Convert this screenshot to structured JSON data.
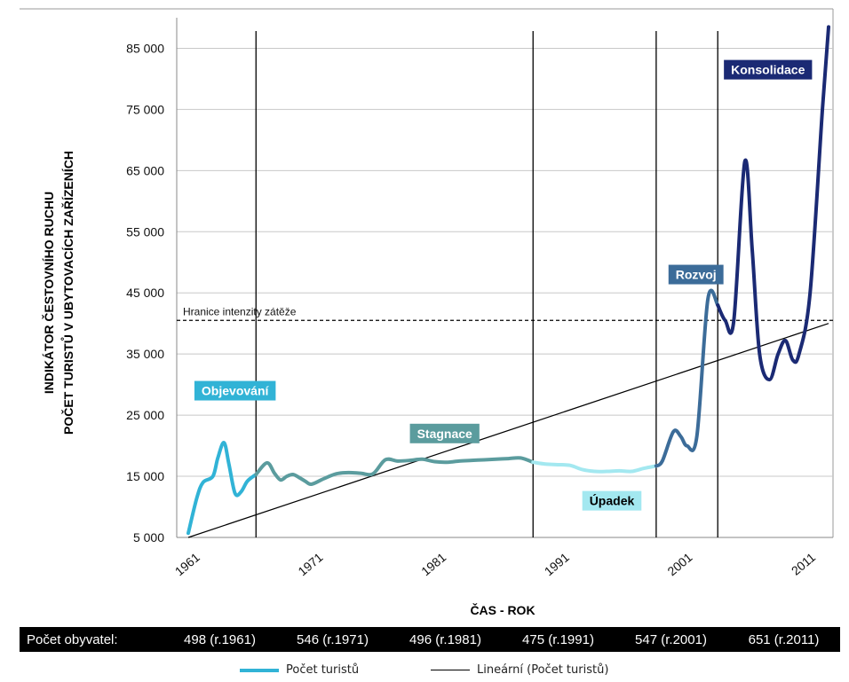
{
  "chart_data": {
    "type": "line",
    "xlabel": "ČAS - ROK",
    "ylabel_lines": [
      "INDIKÁTOR ČESTOVNÍHO RUCHU",
      "POČET TURISTŮ V UBYTOVACÍCH ZAŘÍZENÍCH"
    ],
    "xlim": [
      1961,
      2013
    ],
    "ylim": [
      5000,
      90000
    ],
    "x_ticks": [
      1961,
      1971,
      1981,
      1991,
      2001,
      2011
    ],
    "y_ticks": [
      5000,
      15000,
      25000,
      35000,
      45000,
      55000,
      65000,
      75000,
      85000
    ],
    "y_tick_labels": [
      "5 000",
      "15 000",
      "25 000",
      "35 000",
      "45 000",
      "55 000",
      "65 000",
      "75 000",
      "85 000"
    ],
    "grid": "horizontal",
    "phase_dividers_years": [
      1966.5,
      1989,
      1999,
      2004
    ],
    "threshold": {
      "value": 40500,
      "label": "Hranice intenzity zátěže"
    },
    "series": [
      {
        "name": "Počet turistů",
        "style": "thick-smooth",
        "segments": [
          {
            "color": "#31b3d6",
            "points": [
              [
                1961,
                5700
              ],
              [
                1961.7,
                11500
              ],
              [
                1962.2,
                14000
              ],
              [
                1963,
                15000
              ],
              [
                1963.4,
                18000
              ],
              [
                1963.9,
                20500
              ],
              [
                1964.3,
                17000
              ],
              [
                1964.8,
                12200
              ],
              [
                1965.3,
                12500
              ],
              [
                1965.8,
                14200
              ],
              [
                1966.5,
                15300
              ]
            ]
          },
          {
            "color": "#5b9c9e",
            "points": [
              [
                1966.5,
                15300
              ],
              [
                1967.4,
                17200
              ],
              [
                1968,
                15500
              ],
              [
                1968.5,
                14400
              ],
              [
                1969,
                15000
              ],
              [
                1969.5,
                15300
              ],
              [
                1970,
                14800
              ],
              [
                1970.5,
                14200
              ],
              [
                1971,
                13700
              ],
              [
                1972,
                14600
              ],
              [
                1973,
                15400
              ],
              [
                1974,
                15600
              ],
              [
                1975,
                15500
              ],
              [
                1976,
                15400
              ],
              [
                1977,
                17700
              ],
              [
                1978,
                17500
              ],
              [
                1979,
                17600
              ],
              [
                1980,
                17800
              ],
              [
                1981,
                17400
              ],
              [
                1982,
                17300
              ],
              [
                1983,
                17500
              ],
              [
                1984,
                17600
              ],
              [
                1985,
                17700
              ],
              [
                1986,
                17800
              ],
              [
                1987,
                17900
              ],
              [
                1988,
                18000
              ],
              [
                1989,
                17300
              ]
            ]
          },
          {
            "color": "#a3e8f0",
            "points": [
              [
                1989,
                17300
              ],
              [
                1990,
                17000
              ],
              [
                1991,
                16900
              ],
              [
                1992,
                16800
              ],
              [
                1993,
                16100
              ],
              [
                1994,
                15800
              ],
              [
                1995,
                15800
              ],
              [
                1996,
                15900
              ],
              [
                1997,
                15800
              ],
              [
                1998,
                16300
              ],
              [
                1999,
                16700
              ]
            ]
          },
          {
            "color": "#3c6c99",
            "points": [
              [
                1999,
                16700
              ],
              [
                1999.5,
                17500
              ],
              [
                2000.4,
                22300
              ],
              [
                2001,
                21500
              ],
              [
                2001.5,
                20000
              ],
              [
                2002.3,
                21500
              ],
              [
                2003.2,
                44000
              ],
              [
                2004,
                43000
              ]
            ]
          },
          {
            "color": "#1b2a74",
            "points": [
              [
                2004,
                43000
              ],
              [
                2004.6,
                40500
              ],
              [
                2005.3,
                40400
              ],
              [
                2006.2,
                66500
              ],
              [
                2006.8,
                52000
              ],
              [
                2007.4,
                35000
              ],
              [
                2008.2,
                30800
              ],
              [
                2008.9,
                35000
              ],
              [
                2009.5,
                37200
              ],
              [
                2010.1,
                34000
              ],
              [
                2010.6,
                35000
              ],
              [
                2011.5,
                45000
              ],
              [
                2012.5,
                75000
              ],
              [
                2013,
                88500
              ]
            ]
          }
        ]
      },
      {
        "name": "Lineární (Počet turistů)",
        "style": "thin-line",
        "color": "#000000",
        "points": [
          [
            1961,
            5000
          ],
          [
            2013,
            40000
          ]
        ]
      }
    ],
    "phases": [
      {
        "label": "Objevování",
        "x": 1961.5,
        "y": 29000,
        "bg": "#31b3d6",
        "fg": "#ffffff"
      },
      {
        "label": "Stagnace",
        "x": 1979,
        "y": 22000,
        "bg": "#5b9c9e",
        "fg": "#ffffff"
      },
      {
        "label": "Úpadek",
        "x": 1993,
        "y": 11000,
        "bg": "#a3e8f0",
        "fg": "#000000"
      },
      {
        "label": "Rozvoj",
        "x": 2000,
        "y": 48000,
        "bg": "#3c6c99",
        "fg": "#ffffff"
      },
      {
        "label": "Konsolidace",
        "x": 2004.5,
        "y": 81500,
        "bg": "#1b2a74",
        "fg": "#ffffff"
      }
    ]
  },
  "population": {
    "label": "Počet obyvatel:",
    "values": [
      "498 (r.1961)",
      "546 (r.1971)",
      "496 (r.1981)",
      "475 (r.1991)",
      "547 (r.2001)",
      "651 (r.2011)"
    ]
  },
  "legend": {
    "items": [
      "Počet turistů",
      "Lineární (Počet turistů)"
    ]
  },
  "colors": {
    "grid": "#c8c8c8",
    "axis": "#888888",
    "divider": "#000000",
    "trend": "#000000"
  }
}
